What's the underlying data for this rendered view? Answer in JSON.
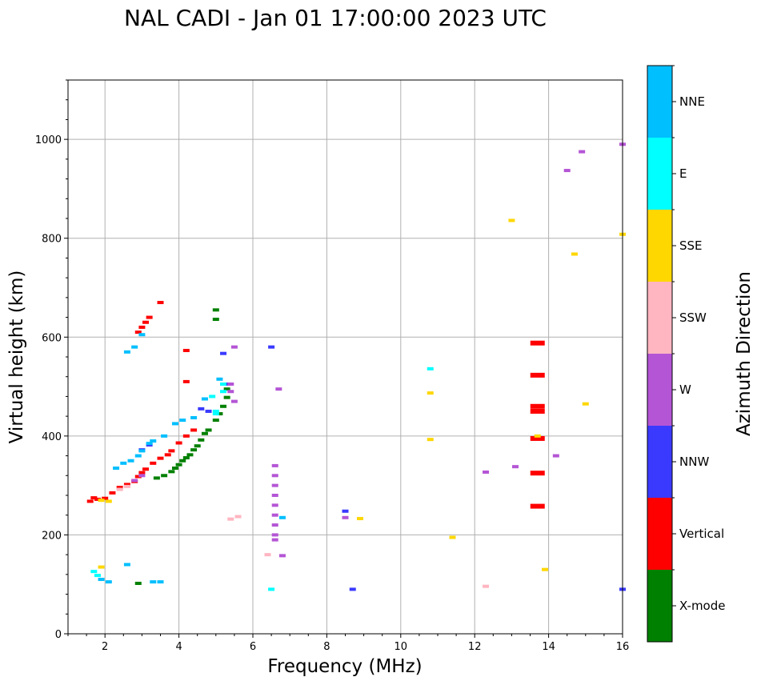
{
  "chart_data": {
    "type": "scatter",
    "title": "NAL CADI - Jan 01 17:00:00 2023 UTC",
    "xlabel": "Frequency (MHz)",
    "ylabel": "Virtual height (km)",
    "xlim": [
      1,
      16
    ],
    "ylim": [
      0,
      1120
    ],
    "x_ticks": [
      2,
      4,
      6,
      8,
      10,
      12,
      14,
      16
    ],
    "y_ticks": [
      0,
      200,
      400,
      600,
      800,
      1000
    ],
    "grid": true,
    "colorbar": {
      "label": "Azimuth Direction",
      "categories": [
        {
          "name": "X-mode",
          "color": "#008000"
        },
        {
          "name": "Vertical",
          "color": "#ff0000"
        },
        {
          "name": "NNW",
          "color": "#3a3aff"
        },
        {
          "name": "W",
          "color": "#b455d5"
        },
        {
          "name": "SSW",
          "color": "#ffb6c1"
        },
        {
          "name": "SSE",
          "color": "#ffd700"
        },
        {
          "name": "E",
          "color": "#00ffff"
        },
        {
          "name": "NNE",
          "color": "#00bfff"
        }
      ]
    },
    "series": [
      {
        "name": "X-mode",
        "points": [
          [
            3.4,
            315
          ],
          [
            3.6,
            320
          ],
          [
            3.8,
            328
          ],
          [
            3.9,
            335
          ],
          [
            4.0,
            342
          ],
          [
            4.1,
            350
          ],
          [
            4.2,
            356
          ],
          [
            4.3,
            362
          ],
          [
            4.4,
            372
          ],
          [
            4.5,
            380
          ],
          [
            4.6,
            392
          ],
          [
            4.7,
            405
          ],
          [
            4.8,
            412
          ],
          [
            5.0,
            432
          ],
          [
            5.1,
            445
          ],
          [
            5.2,
            460
          ],
          [
            5.3,
            478
          ],
          [
            5.3,
            495
          ],
          [
            5.0,
            636
          ],
          [
            5.0,
            655
          ],
          [
            2.9,
            102
          ]
        ]
      },
      {
        "name": "Vertical",
        "points": [
          [
            1.6,
            268
          ],
          [
            1.7,
            275
          ],
          [
            1.8,
            272
          ],
          [
            2.0,
            274
          ],
          [
            2.2,
            285
          ],
          [
            2.4,
            296
          ],
          [
            2.6,
            302
          ],
          [
            2.8,
            308
          ],
          [
            2.9,
            318
          ],
          [
            3.0,
            326
          ],
          [
            3.1,
            333
          ],
          [
            3.3,
            345
          ],
          [
            3.5,
            355
          ],
          [
            3.7,
            362
          ],
          [
            3.8,
            370
          ],
          [
            4.0,
            386
          ],
          [
            4.2,
            400
          ],
          [
            4.4,
            412
          ],
          [
            3.2,
            640
          ],
          [
            3.1,
            630
          ],
          [
            3.0,
            620
          ],
          [
            2.9,
            610
          ],
          [
            3.5,
            670
          ],
          [
            4.2,
            573
          ],
          [
            4.2,
            510
          ],
          [
            13.7,
            588
          ],
          [
            13.7,
            523
          ],
          [
            13.7,
            460
          ],
          [
            13.7,
            450
          ],
          [
            13.7,
            395
          ],
          [
            13.7,
            325
          ],
          [
            13.7,
            258
          ]
        ]
      },
      {
        "name": "NNW",
        "points": [
          [
            3.0,
            372
          ],
          [
            3.2,
            382
          ],
          [
            4.6,
            455
          ],
          [
            4.8,
            450
          ],
          [
            5.2,
            567
          ],
          [
            5.3,
            505
          ],
          [
            6.5,
            580
          ],
          [
            8.5,
            248
          ],
          [
            8.7,
            90
          ],
          [
            16.0,
            90
          ]
        ]
      },
      {
        "name": "W",
        "points": [
          [
            2.8,
            310
          ],
          [
            3.0,
            320
          ],
          [
            5.4,
            505
          ],
          [
            5.4,
            490
          ],
          [
            5.5,
            470
          ],
          [
            6.6,
            340
          ],
          [
            6.6,
            320
          ],
          [
            6.6,
            300
          ],
          [
            6.6,
            280
          ],
          [
            6.6,
            260
          ],
          [
            6.6,
            240
          ],
          [
            6.6,
            220
          ],
          [
            6.6,
            200
          ],
          [
            6.6,
            190
          ],
          [
            6.8,
            158
          ],
          [
            6.7,
            495
          ],
          [
            8.5,
            235
          ],
          [
            12.3,
            327
          ],
          [
            13.1,
            338
          ],
          [
            14.2,
            360
          ],
          [
            14.5,
            937
          ],
          [
            14.9,
            975
          ],
          [
            16.0,
            990
          ],
          [
            5.5,
            580
          ]
        ]
      },
      {
        "name": "SSW",
        "points": [
          [
            2.4,
            292
          ],
          [
            2.6,
            298
          ],
          [
            6.4,
            160
          ],
          [
            5.4,
            232
          ],
          [
            5.6,
            237
          ],
          [
            12.3,
            96
          ]
        ]
      },
      {
        "name": "SSE",
        "points": [
          [
            1.9,
            270
          ],
          [
            2.1,
            268
          ],
          [
            1.9,
            135
          ],
          [
            8.9,
            233
          ],
          [
            10.8,
            487
          ],
          [
            10.8,
            393
          ],
          [
            11.4,
            195
          ],
          [
            13.0,
            836
          ],
          [
            13.7,
            400
          ],
          [
            13.9,
            130
          ],
          [
            14.7,
            768
          ],
          [
            15.0,
            465
          ],
          [
            16.0,
            808
          ]
        ]
      },
      {
        "name": "E",
        "points": [
          [
            1.7,
            126
          ],
          [
            1.8,
            118
          ],
          [
            5.2,
            505
          ],
          [
            5.2,
            490
          ],
          [
            6.5,
            90
          ],
          [
            10.8,
            536
          ],
          [
            5.0,
            450
          ],
          [
            4.9,
            480
          ],
          [
            5.0,
            445
          ]
        ]
      },
      {
        "name": "NNE",
        "points": [
          [
            2.3,
            335
          ],
          [
            2.5,
            345
          ],
          [
            2.7,
            350
          ],
          [
            2.9,
            360
          ],
          [
            3.0,
            370
          ],
          [
            3.2,
            385
          ],
          [
            3.3,
            390
          ],
          [
            3.6,
            400
          ],
          [
            3.9,
            425
          ],
          [
            4.1,
            432
          ],
          [
            4.4,
            437
          ],
          [
            4.7,
            475
          ],
          [
            5.1,
            515
          ],
          [
            3.0,
            605
          ],
          [
            2.6,
            570
          ],
          [
            2.8,
            580
          ],
          [
            6.8,
            235
          ],
          [
            1.9,
            110
          ],
          [
            2.1,
            105
          ],
          [
            3.3,
            105
          ],
          [
            3.5,
            105
          ],
          [
            2.6,
            140
          ]
        ]
      }
    ]
  }
}
